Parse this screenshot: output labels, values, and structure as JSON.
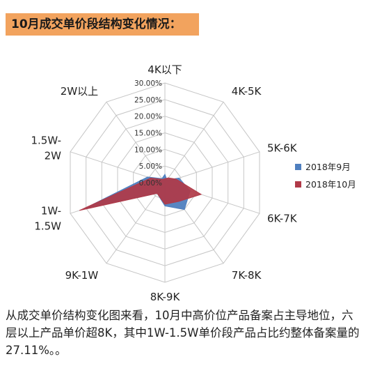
{
  "header": {
    "title": "10月成交单价段结构变化情况："
  },
  "chart_data": {
    "type": "radar",
    "categories": [
      "4K以下",
      "4K-5K",
      "5K-6K",
      "6K-7K",
      "7K-8K",
      "8K-9K",
      "9K-1W",
      "1W-1.5W",
      "1.5W-2W",
      "2W以上"
    ],
    "category_lines": [
      [
        "4K以下"
      ],
      [
        "4K-5K"
      ],
      [
        "5K-6K"
      ],
      [
        "6K-7K"
      ],
      [
        "7K-8K"
      ],
      [
        "8K-9K"
      ],
      [
        "9K-1W"
      ],
      [
        "1W-",
        "1.5W"
      ],
      [
        "1.5W-",
        "2W"
      ],
      [
        "2W以上"
      ]
    ],
    "series": [
      {
        "name": "2018年9月",
        "color": "#4f7fbf",
        "values": [
          2.5,
          1.0,
          4.5,
          8.0,
          10.0,
          7.0,
          4.0,
          26.0,
          5.5,
          1.5
        ]
      },
      {
        "name": "2018年10月",
        "color": "#b03a48",
        "values": [
          1.2,
          1.8,
          3.5,
          11.5,
          7.0,
          6.5,
          4.0,
          27.11,
          4.5,
          1.2
        ]
      }
    ],
    "r_ticks": [
      "0.00%",
      "5.00%",
      "10.00%",
      "15.00%",
      "20.00%",
      "25.00%",
      "30.00%"
    ],
    "rlim": [
      0,
      30
    ],
    "grid": true,
    "legend": "right"
  },
  "caption": "从成交单价结构变化图来看，10月中高价位产品备案占主导地位，六层以上产品单价超8K，其中1W-1.5W单价段产品占比约整体备案量的27.11%。。"
}
